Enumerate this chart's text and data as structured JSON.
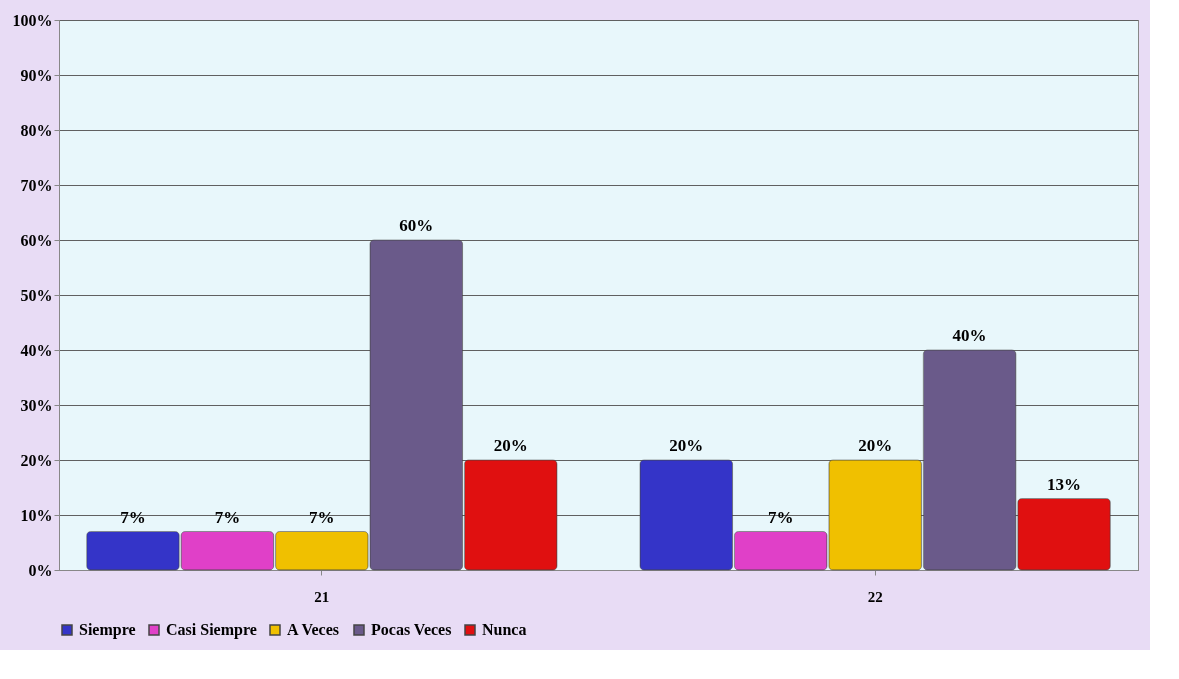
{
  "chart_data": {
    "type": "bar",
    "categories": [
      "21",
      "22"
    ],
    "series": [
      {
        "name": "Siempre",
        "color": "#3434c8",
        "values": [
          7,
          20
        ],
        "value_labels": [
          "7%",
          "20%"
        ]
      },
      {
        "name": "Casi Siempre",
        "color": "#e040c8",
        "values": [
          7,
          7
        ],
        "value_labels": [
          "7%",
          "7%"
        ]
      },
      {
        "name": "A Veces",
        "color": "#f0c000",
        "values": [
          7,
          20
        ],
        "value_labels": [
          "7%",
          "20%"
        ]
      },
      {
        "name": "Pocas Veces",
        "color": "#6a5a8a",
        "values": [
          60,
          40
        ],
        "value_labels": [
          "60%",
          "40%"
        ]
      },
      {
        "name": "Nunca",
        "color": "#e01010",
        "values": [
          20,
          13
        ],
        "value_labels": [
          "20%",
          "13%"
        ]
      }
    ],
    "ylim": [
      0,
      100
    ],
    "yticks": [
      {
        "value": 0,
        "label": "0%"
      },
      {
        "value": 10,
        "label": "10%"
      },
      {
        "value": 20,
        "label": "20%"
      },
      {
        "value": 30,
        "label": "30%"
      },
      {
        "value": 40,
        "label": "40%"
      },
      {
        "value": 50,
        "label": "50%"
      },
      {
        "value": 60,
        "label": "60%"
      },
      {
        "value": 70,
        "label": "70%"
      },
      {
        "value": 80,
        "label": "80%"
      },
      {
        "value": 90,
        "label": "90%"
      },
      {
        "value": 100,
        "label": "100%"
      }
    ],
    "grid": "y",
    "legend": "bottom"
  }
}
